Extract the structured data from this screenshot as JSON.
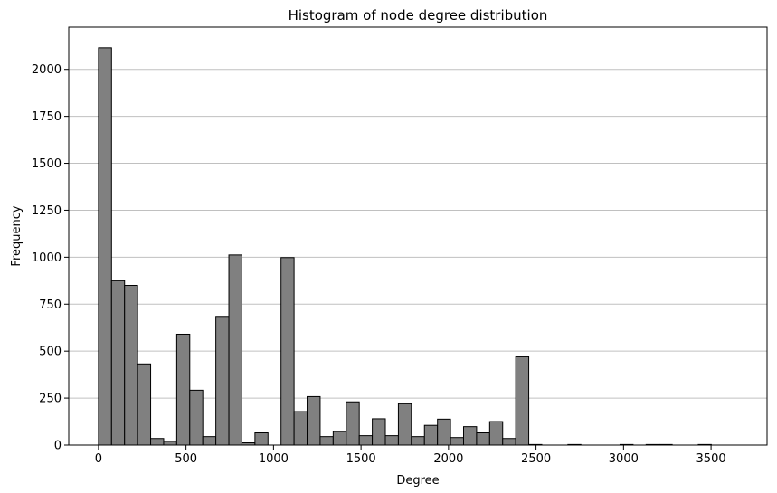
{
  "chart_data": {
    "type": "bar",
    "title": "Histogram of node degree distribution",
    "xlabel": "Degree",
    "ylabel": "Frequency",
    "xlim": [
      -170,
      3820
    ],
    "ylim": [
      0,
      2225
    ],
    "xticks": [
      0,
      500,
      1000,
      1500,
      2000,
      2500,
      3000,
      3500
    ],
    "yticks": [
      0,
      250,
      500,
      750,
      1000,
      1250,
      1500,
      1750,
      2000
    ],
    "grid": "y",
    "bin_width": 74.5,
    "bin_start": 0,
    "values": [
      2115,
      875,
      850,
      432,
      35,
      20,
      590,
      292,
      45,
      685,
      1012,
      12,
      65,
      0,
      998,
      178,
      258,
      45,
      72,
      230,
      50,
      140,
      50,
      220,
      45,
      105,
      138,
      40,
      98,
      65,
      125,
      35,
      470,
      3,
      0,
      0,
      3,
      0,
      0,
      0,
      3,
      0,
      3,
      3,
      0,
      0,
      3,
      0,
      0
    ],
    "colors": {
      "bar_fill": "#808080",
      "bar_edge": "#000000",
      "grid": "#c0c0c0"
    }
  }
}
